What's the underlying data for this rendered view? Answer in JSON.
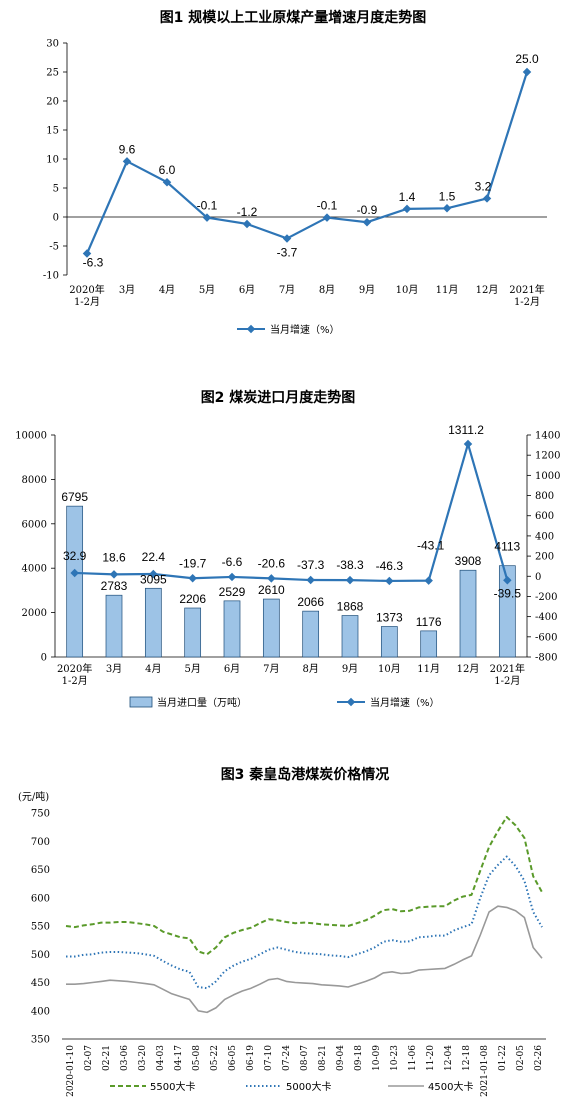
{
  "chart_data": [
    {
      "type": "line",
      "title": "图1  规模以上工业原煤产量增速月度走势图",
      "categories": [
        "2020年\n1-2月",
        "3月",
        "4月",
        "5月",
        "6月",
        "7月",
        "8月",
        "9月",
        "10月",
        "11月",
        "12月",
        "2021年\n1-2月"
      ],
      "series": [
        {
          "name": "当月增速（%）",
          "values": [
            -6.3,
            9.6,
            6.0,
            -0.1,
            -1.2,
            -3.7,
            -0.1,
            -0.9,
            1.4,
            1.5,
            3.2,
            25.0
          ]
        }
      ],
      "data_labels": [
        "-6.3",
        "9.6",
        "6.0",
        "-0.1",
        "-1.2",
        "-3.7",
        "-0.1",
        "-0.9",
        "1.4",
        "1.5",
        "3.2",
        "25.0"
      ],
      "ylim": [
        -10,
        30
      ],
      "yticks": [
        "-10",
        "-5",
        "0",
        "5",
        "10",
        "15",
        "20",
        "25",
        "30"
      ],
      "color": "#2e75b6",
      "legend": "bottom"
    },
    {
      "type": "bar",
      "title": "图2  煤炭进口月度走势图",
      "categories": [
        "2020年\n1-2月",
        "3月",
        "4月",
        "5月",
        "6月",
        "7月",
        "8月",
        "9月",
        "10月",
        "11月",
        "12月",
        "2021年\n1-2月"
      ],
      "series": [
        {
          "name": "当月进口量（万吨）",
          "type": "bar",
          "axis": "left",
          "values": [
            6795,
            2783,
            3095,
            2206,
            2529,
            2610,
            2066,
            1868,
            1373,
            1176,
            3908,
            4113
          ]
        },
        {
          "name": "当月增速（%）",
          "type": "line",
          "axis": "right",
          "values": [
            32.9,
            18.6,
            22.4,
            -19.7,
            -6.6,
            -20.6,
            -37.3,
            -38.3,
            -46.3,
            -43.1,
            1311.2,
            -39.5
          ]
        }
      ],
      "bar_labels": [
        "6795",
        "2783",
        "3095",
        "2206",
        "2529",
        "2610",
        "2066",
        "1868",
        "1373",
        "1176",
        "3908",
        "4113"
      ],
      "line_labels": [
        "32.9",
        "18.6",
        "22.4",
        "-19.7",
        "-6.6",
        "-20.6",
        "-37.3",
        "-38.3",
        "-46.3",
        "-43.1",
        "1311.2",
        "-39.5"
      ],
      "ylim_left": [
        0,
        10000
      ],
      "yticks_left": [
        "0",
        "2000",
        "4000",
        "6000",
        "8000",
        "10000"
      ],
      "ylim_right": [
        -800,
        1400
      ],
      "yticks_right": [
        "-800",
        "-600",
        "-400",
        "-200",
        "0",
        "200",
        "400",
        "600",
        "800",
        "1000",
        "1200",
        "1400"
      ],
      "bar_color": "#9dc3e6",
      "line_color": "#2e75b6",
      "legend": "bottom"
    },
    {
      "type": "line",
      "title": "图3  秦皇岛港煤炭价格情况",
      "ylabel": "(元/吨)",
      "ylim": [
        350,
        750
      ],
      "yticks": [
        "350",
        "400",
        "450",
        "500",
        "550",
        "600",
        "650",
        "700",
        "750"
      ],
      "xticks": [
        "2020-01-10",
        "02-07",
        "02-21",
        "03-06",
        "03-20",
        "04-03",
        "04-17",
        "05-08",
        "05-22",
        "06-05",
        "06-19",
        "07-10",
        "07-24",
        "08-07",
        "08-21",
        "09-04",
        "09-18",
        "10-09",
        "10-23",
        "11-06",
        "11-20",
        "12-04",
        "12-18",
        "2021-01-08",
        "01-22",
        "02-05",
        "02-26"
      ],
      "series": [
        {
          "name": "5500大卡",
          "color": "#5a9a2a",
          "style": "dashed",
          "values": [
            550,
            548,
            551,
            553,
            556,
            556,
            557,
            557,
            555,
            553,
            550,
            540,
            535,
            530,
            528,
            505,
            500,
            512,
            530,
            538,
            543,
            547,
            555,
            562,
            560,
            557,
            555,
            556,
            555,
            553,
            552,
            551,
            550,
            555,
            560,
            568,
            578,
            580,
            576,
            577,
            583,
            584,
            585,
            585,
            595,
            602,
            605,
            648,
            690,
            718,
            743,
            728,
            706,
            638,
            610
          ]
        },
        {
          "name": "5000大卡",
          "color": "#2e75b6",
          "style": "dotted",
          "values": [
            496,
            496,
            499,
            500,
            503,
            504,
            504,
            503,
            502,
            500,
            497,
            488,
            480,
            473,
            469,
            442,
            440,
            452,
            470,
            480,
            487,
            492,
            500,
            508,
            512,
            508,
            504,
            502,
            501,
            500,
            498,
            497,
            495,
            500,
            505,
            512,
            522,
            525,
            522,
            523,
            530,
            531,
            533,
            533,
            542,
            548,
            553,
            600,
            640,
            658,
            673,
            656,
            630,
            575,
            548
          ]
        },
        {
          "name": "4500大卡",
          "color": "#999999",
          "style": "solid",
          "values": [
            447,
            447,
            448,
            450,
            452,
            454,
            453,
            452,
            450,
            448,
            446,
            438,
            430,
            425,
            420,
            400,
            397,
            405,
            420,
            428,
            435,
            440,
            447,
            455,
            457,
            452,
            450,
            449,
            448,
            446,
            445,
            444,
            442,
            447,
            452,
            458,
            467,
            469,
            466,
            467,
            472,
            473,
            474,
            475,
            482,
            490,
            497,
            534,
            575,
            585,
            583,
            577,
            565,
            512,
            493
          ]
        }
      ],
      "legend": "bottom"
    }
  ]
}
